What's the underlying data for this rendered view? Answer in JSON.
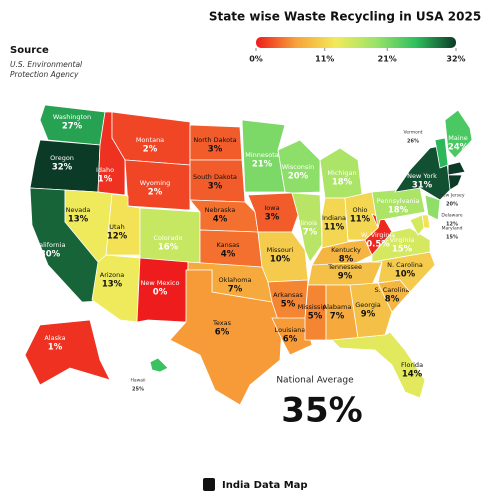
{
  "title": "State wise Waste Recycling in USA 2025",
  "source": {
    "heading": "Source",
    "text": "U.S. Environmental Protection Agency"
  },
  "legend": {
    "ticks": [
      {
        "value": 0,
        "label": "0%"
      },
      {
        "value": 11,
        "label": "11%"
      },
      {
        "value": 21,
        "label": "21%"
      },
      {
        "value": 32,
        "label": "32%"
      }
    ],
    "colors": [
      "#ee1c1c",
      "#f6a33a",
      "#f2ea5a",
      "#9ae36a",
      "#2fbf5e",
      "#0b3b27"
    ]
  },
  "states": [
    {
      "name": "Washington",
      "value": 27,
      "label": "27%"
    },
    {
      "name": "Oregon",
      "value": 32,
      "label": "32%"
    },
    {
      "name": "California",
      "value": 30,
      "label": "30%"
    },
    {
      "name": "Idaho",
      "value": 1,
      "label": "1%"
    },
    {
      "name": "Nevada",
      "value": 13,
      "label": "13%"
    },
    {
      "name": "Montana",
      "value": 2,
      "label": "2%"
    },
    {
      "name": "Wyoming",
      "value": 2,
      "label": "2%"
    },
    {
      "name": "Utah",
      "value": 12,
      "label": "12%"
    },
    {
      "name": "Colorado",
      "value": 16,
      "label": "16%"
    },
    {
      "name": "Arizona",
      "value": 13,
      "label": "13%"
    },
    {
      "name": "New Mexico",
      "value": 0,
      "label": "0%"
    },
    {
      "name": "North Dakota",
      "value": 3,
      "label": "3%"
    },
    {
      "name": "South Dakota",
      "value": 3,
      "label": "3%"
    },
    {
      "name": "Nebraska",
      "value": 4,
      "label": "4%"
    },
    {
      "name": "Kansas",
      "value": 4,
      "label": "4%"
    },
    {
      "name": "Oklahoma",
      "value": 7,
      "label": "7%"
    },
    {
      "name": "Texas",
      "value": 6,
      "label": "6%"
    },
    {
      "name": "Minnesota",
      "value": 21,
      "label": "21%"
    },
    {
      "name": "Iowa",
      "value": 3,
      "label": "3%"
    },
    {
      "name": "Missouri",
      "value": 10,
      "label": "10%"
    },
    {
      "name": "Arkansas",
      "value": 5,
      "label": "5%"
    },
    {
      "name": "Louisiana",
      "value": 6,
      "label": "6%"
    },
    {
      "name": "Wisconsin",
      "value": 20,
      "label": "20%"
    },
    {
      "name": "Illinois",
      "value": 17,
      "label": "17%"
    },
    {
      "name": "Michigan",
      "value": 18,
      "label": "18%"
    },
    {
      "name": "Indiana",
      "value": 11,
      "label": "11%"
    },
    {
      "name": "Ohio",
      "value": 11,
      "label": "11%"
    },
    {
      "name": "Kentucky",
      "value": 8,
      "label": "8%"
    },
    {
      "name": "Tennessee",
      "value": 9,
      "label": "9%"
    },
    {
      "name": "Mississippi",
      "value": 5,
      "label": "5%"
    },
    {
      "name": "Alabama",
      "value": 7,
      "label": "7%"
    },
    {
      "name": "Georgia",
      "value": 9,
      "label": "9%"
    },
    {
      "name": "Florida",
      "value": 14,
      "label": "14%"
    },
    {
      "name": "S. Carolina",
      "value": 8,
      "label": "8%"
    },
    {
      "name": "N. Carolina",
      "value": 10,
      "label": "10%"
    },
    {
      "name": "Virginia",
      "value": 15,
      "label": "15%"
    },
    {
      "name": "W. Virginia",
      "value": 0.5,
      "label": "0.5%"
    },
    {
      "name": "Pennsylvania",
      "value": 18,
      "label": "18%"
    },
    {
      "name": "New York",
      "value": 31,
      "label": "31%"
    },
    {
      "name": "Maine",
      "value": 24,
      "label": "24%"
    },
    {
      "name": "Vermont",
      "value": 26,
      "label": "26%"
    },
    {
      "name": "New Jersey",
      "value": 20,
      "label": "20%"
    },
    {
      "name": "Delaware",
      "value": 12,
      "label": "12%"
    },
    {
      "name": "Maryland",
      "value": 15,
      "label": "15%"
    },
    {
      "name": "Alaska",
      "value": 1,
      "label": "1%"
    },
    {
      "name": "Hawaii",
      "value": 25,
      "label": "25%"
    }
  ],
  "national": {
    "heading": "National Average",
    "value": 35,
    "label": "35%"
  },
  "footer": "India Data Map"
}
